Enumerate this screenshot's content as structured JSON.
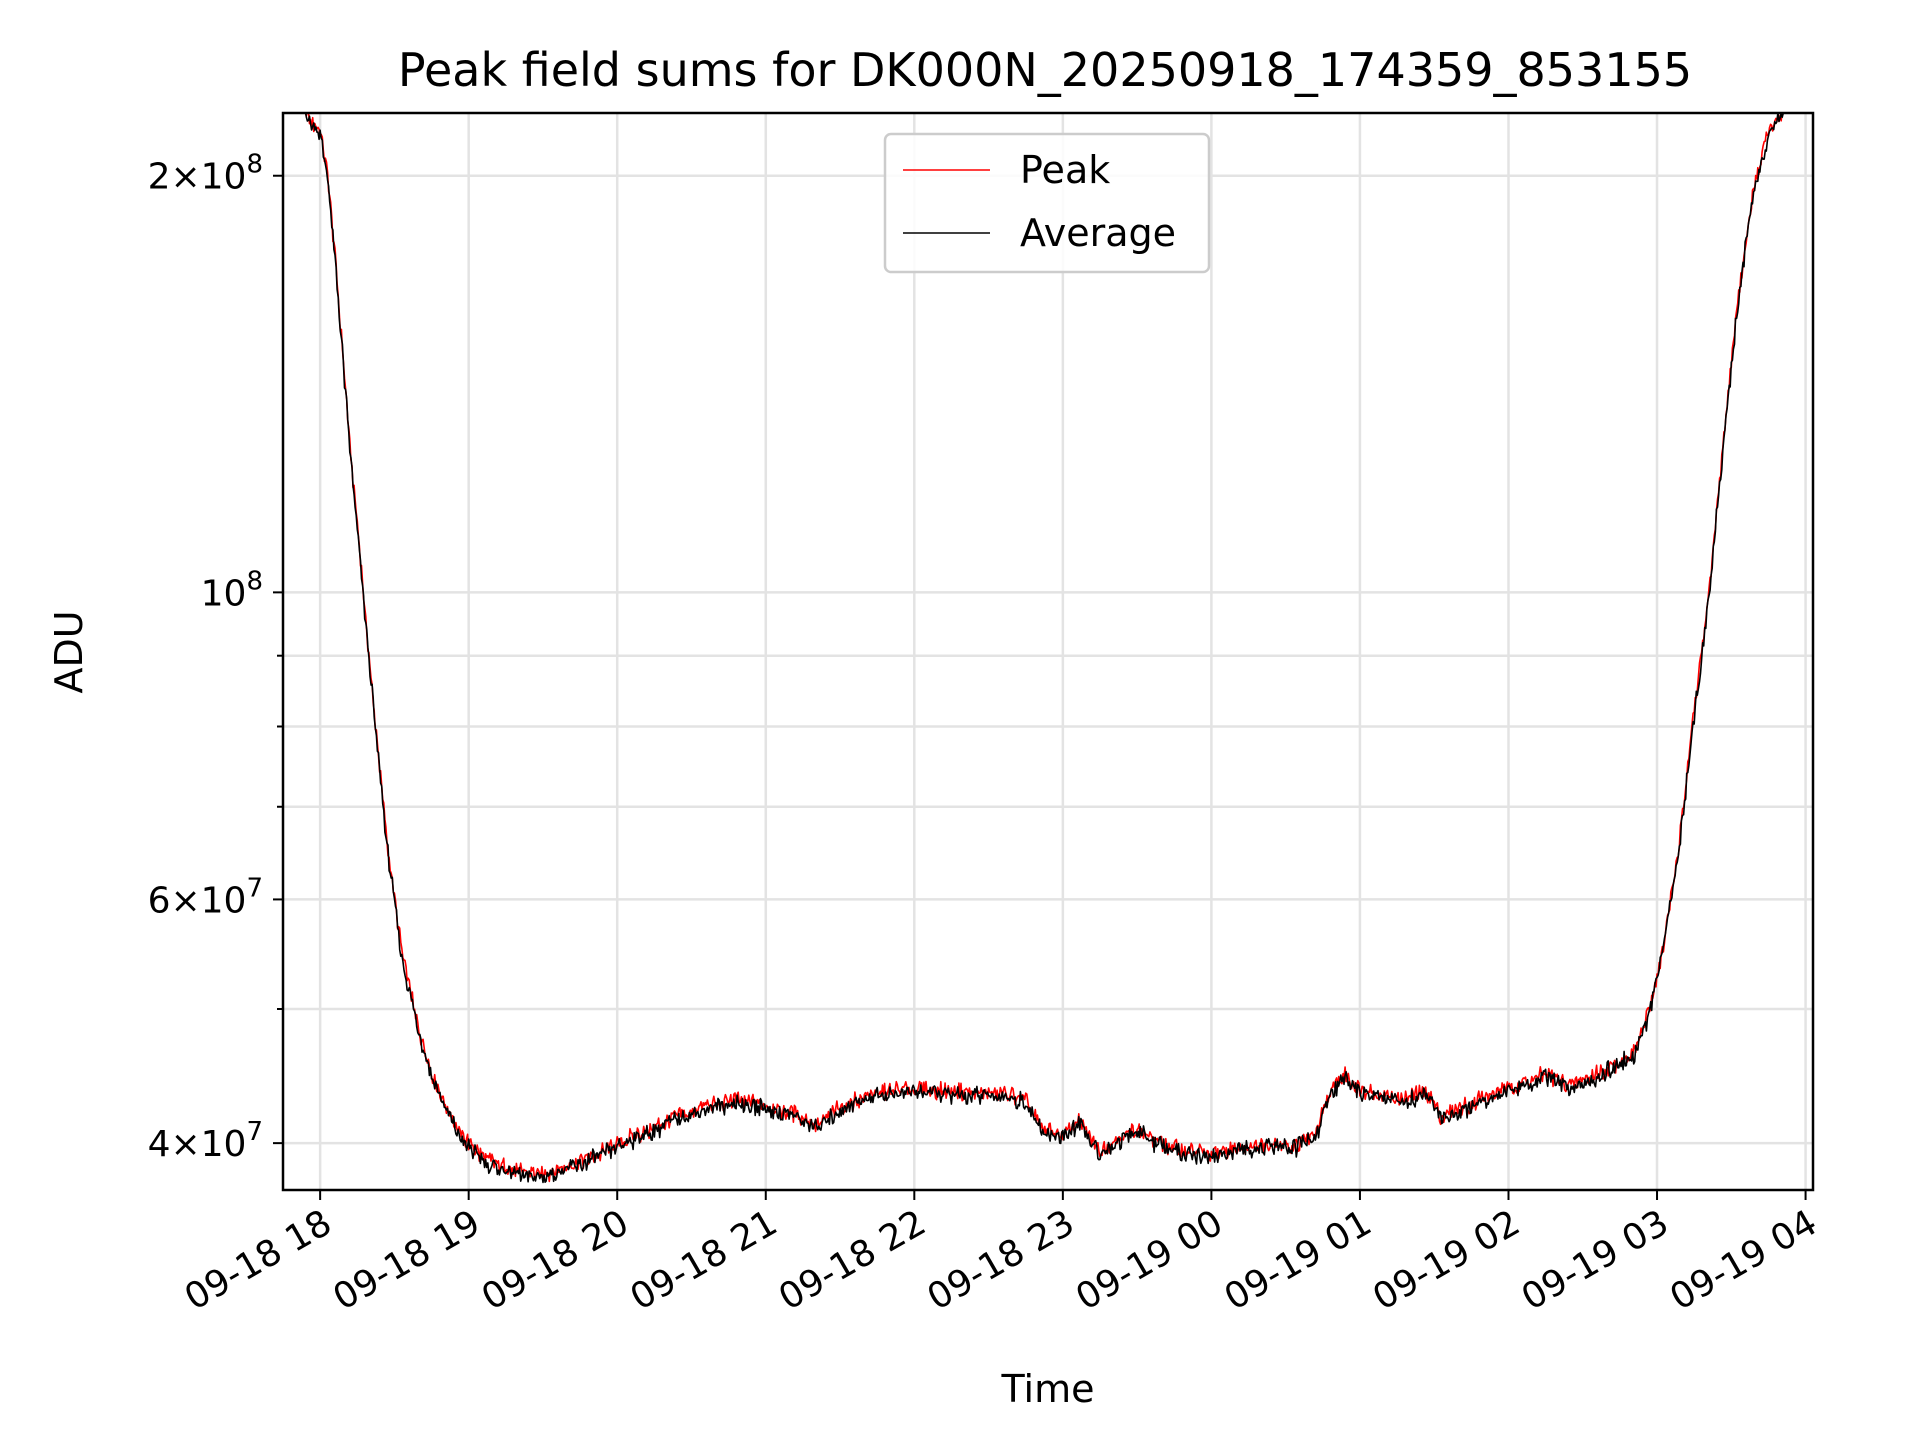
{
  "chart_data": {
    "type": "line",
    "title": "Peak field sums for DK000N_20250918_174359_853155",
    "xlabel": "Time",
    "ylabel": "ADU",
    "yscale": "log",
    "xlim": [
      -0.25,
      10.05
    ],
    "ylim": [
      37000000,
      222000000
    ],
    "x_unit": "hours after 09-18 18:00",
    "x_ticks": [
      {
        "value": 0,
        "label": "09-18 18"
      },
      {
        "value": 1,
        "label": "09-18 19"
      },
      {
        "value": 2,
        "label": "09-18 20"
      },
      {
        "value": 3,
        "label": "09-18 21"
      },
      {
        "value": 4,
        "label": "09-18 22"
      },
      {
        "value": 5,
        "label": "09-18 23"
      },
      {
        "value": 6,
        "label": "09-19 00"
      },
      {
        "value": 7,
        "label": "09-19 01"
      },
      {
        "value": 8,
        "label": "09-19 02"
      },
      {
        "value": 9,
        "label": "09-19 03"
      },
      {
        "value": 10,
        "label": "09-19 04"
      }
    ],
    "y_ticks_major": [
      {
        "value": 40000000,
        "mant": "4",
        "exp": "7"
      },
      {
        "value": 60000000,
        "mant": "6",
        "exp": "7"
      },
      {
        "value": 100000000,
        "mant": "",
        "exp": "8"
      },
      {
        "value": 200000000,
        "mant": "2",
        "exp": "8"
      }
    ],
    "y_ticks_minor": [
      50000000,
      70000000,
      80000000,
      90000000
    ],
    "grid": true,
    "legend": {
      "position": "top-center",
      "entries": [
        "Peak",
        "Average"
      ]
    },
    "series": [
      {
        "name": "Peak",
        "color": "#ff0000",
        "x": [
          -0.25,
          -0.1,
          0.0,
          0.05,
          0.1,
          0.15,
          0.2,
          0.25,
          0.35,
          0.45,
          0.55,
          0.65,
          0.75,
          0.85,
          0.95,
          1.1,
          1.3,
          1.5,
          1.6,
          1.75,
          1.9,
          2.0,
          2.2,
          2.4,
          2.6,
          2.8,
          3.0,
          3.2,
          3.35,
          3.5,
          3.7,
          3.9,
          4.0,
          4.2,
          4.4,
          4.6,
          4.75,
          4.85,
          5.0,
          5.1,
          5.25,
          5.35,
          5.5,
          5.65,
          5.8,
          6.0,
          6.2,
          6.4,
          6.55,
          6.7,
          6.8,
          6.9,
          7.0,
          7.15,
          7.3,
          7.45,
          7.55,
          7.7,
          7.9,
          8.1,
          8.25,
          8.4,
          8.55,
          8.7,
          8.85,
          8.95,
          9.05,
          9.15,
          9.25,
          9.35,
          9.45,
          9.55,
          9.65,
          9.75,
          9.85,
          10.05
        ],
        "y": [
          222000000,
          222000000,
          215000000,
          200000000,
          175000000,
          150000000,
          128000000,
          112000000,
          85000000,
          66000000,
          55000000,
          49000000,
          45000000,
          42500000,
          40500000,
          39000000,
          38200000,
          38000000,
          38300000,
          38800000,
          39400000,
          40000000,
          40800000,
          41800000,
          42500000,
          43000000,
          42600000,
          42000000,
          41200000,
          42500000,
          43400000,
          43700000,
          43800000,
          43600000,
          43500000,
          43400000,
          43000000,
          41000000,
          40500000,
          41500000,
          39500000,
          40200000,
          41000000,
          40000000,
          39500000,
          39300000,
          39700000,
          40000000,
          39800000,
          40600000,
          43500000,
          44800000,
          43800000,
          43300000,
          43000000,
          43600000,
          41800000,
          42500000,
          43500000,
          44200000,
          44800000,
          44000000,
          44600000,
          45500000,
          46500000,
          50000000,
          56000000,
          66000000,
          82000000,
          100000000,
          130000000,
          165000000,
          195000000,
          215000000,
          222000000,
          222000000
        ]
      },
      {
        "name": "Average",
        "color": "#000000",
        "x": [
          -0.25,
          -0.1,
          0.0,
          0.05,
          0.1,
          0.15,
          0.2,
          0.25,
          0.35,
          0.45,
          0.55,
          0.65,
          0.75,
          0.85,
          0.95,
          1.1,
          1.3,
          1.5,
          1.6,
          1.75,
          1.9,
          2.0,
          2.2,
          2.4,
          2.6,
          2.8,
          3.0,
          3.2,
          3.35,
          3.5,
          3.7,
          3.9,
          4.0,
          4.2,
          4.4,
          4.6,
          4.75,
          4.85,
          5.0,
          5.1,
          5.25,
          5.35,
          5.5,
          5.65,
          5.8,
          6.0,
          6.2,
          6.4,
          6.55,
          6.7,
          6.8,
          6.9,
          7.0,
          7.15,
          7.3,
          7.45,
          7.55,
          7.7,
          7.9,
          8.1,
          8.25,
          8.4,
          8.55,
          8.7,
          8.85,
          8.95,
          9.05,
          9.15,
          9.25,
          9.35,
          9.45,
          9.55,
          9.65,
          9.75,
          9.85,
          10.05
        ],
        "y": [
          222000000,
          222000000,
          214000000,
          199000000,
          174000000,
          149000000,
          127000000,
          111000000,
          84500000,
          65500000,
          54500000,
          48700000,
          44700000,
          42200000,
          40200000,
          38800000,
          38000000,
          37800000,
          38100000,
          38600000,
          39200000,
          39800000,
          40600000,
          41600000,
          42300000,
          42800000,
          42400000,
          41800000,
          41000000,
          42300000,
          43200000,
          43500000,
          43600000,
          43400000,
          43300000,
          43200000,
          42800000,
          40800000,
          40300000,
          41300000,
          39300000,
          40000000,
          40800000,
          39800000,
          39300000,
          39100000,
          39500000,
          39800000,
          39600000,
          40400000,
          43300000,
          44600000,
          43600000,
          43100000,
          42800000,
          43400000,
          41600000,
          42300000,
          43300000,
          44000000,
          44600000,
          43800000,
          44400000,
          45300000,
          46300000,
          49700000,
          55700000,
          65500000,
          81500000,
          99500000,
          129000000,
          164000000,
          194000000,
          214000000,
          222000000,
          222000000
        ]
      }
    ]
  }
}
